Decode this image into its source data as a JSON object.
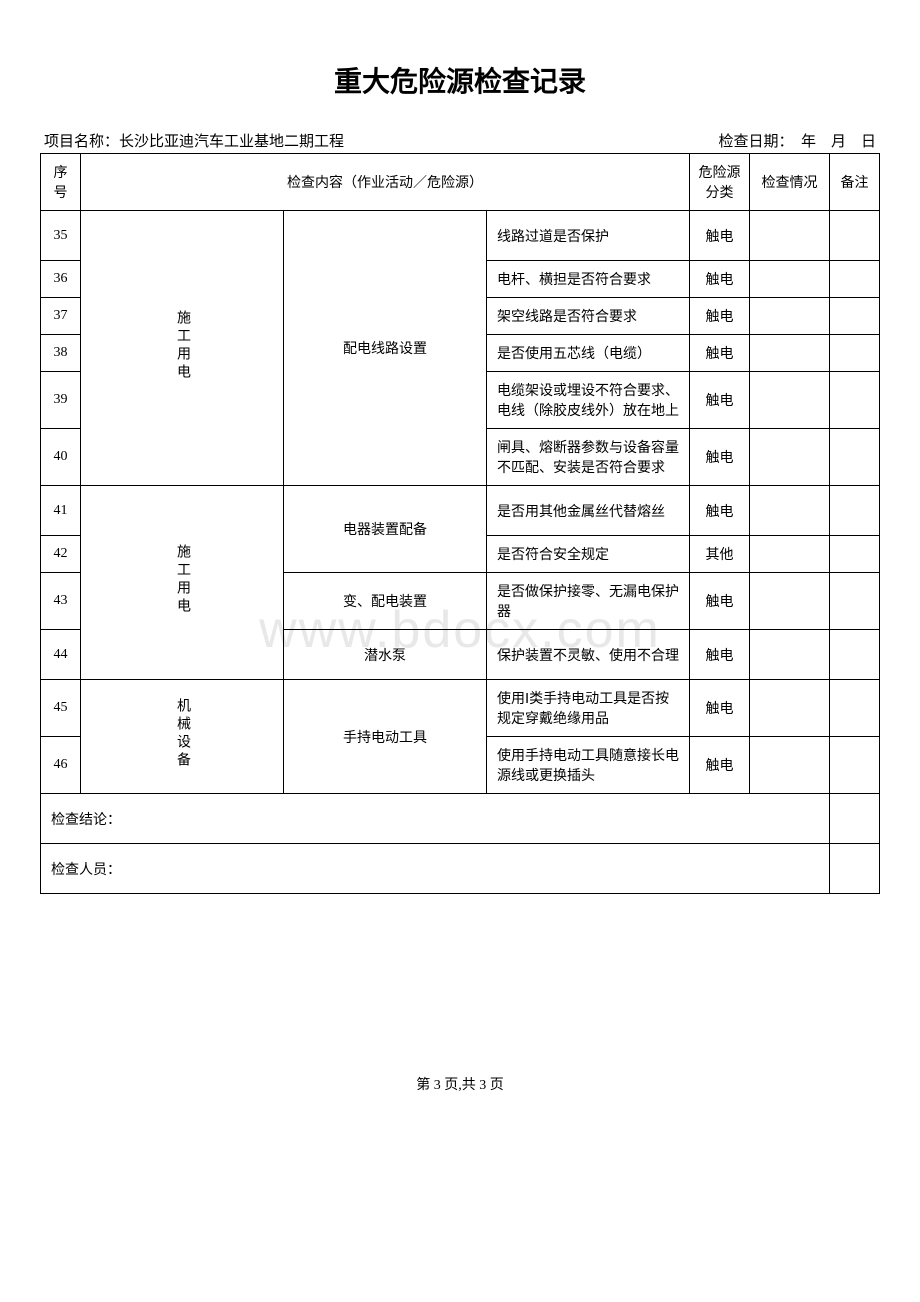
{
  "title": "重大危险源检查记录",
  "projectLabel": "项目名称：",
  "projectName": "长沙比亚迪汽车工业基地二期工程",
  "dateLabel": "检查日期：",
  "dateValue": "年　月　日",
  "watermark": "www.bdocx.com",
  "headers": {
    "seq": "序号",
    "content": "检查内容（作业活动／危险源）",
    "type": "危险源分类",
    "status": "检查情况",
    "remark": "备注"
  },
  "groups": {
    "g1": "施工用电",
    "g1sub1": "配电线路设置",
    "g1sub2": "电器装置配备",
    "g1sub3": "变、配电装置",
    "g1sub4": "潜水泵",
    "g2": "机械设备",
    "g2sub1": "手持电动工具"
  },
  "rows": {
    "r35": {
      "seq": "35",
      "content": "线路过道是否保护",
      "type": "触电"
    },
    "r36": {
      "seq": "36",
      "content": "电杆、横担是否符合要求",
      "type": "触电"
    },
    "r37": {
      "seq": "37",
      "content": "架空线路是否符合要求",
      "type": "触电"
    },
    "r38": {
      "seq": "38",
      "content": "是否使用五芯线（电缆）",
      "type": "触电"
    },
    "r39": {
      "seq": "39",
      "content": "电缆架设或埋设不符合要求、电线（除胶皮线外）放在地上",
      "type": "触电"
    },
    "r40": {
      "seq": "40",
      "content": "闸具、熔断器参数与设备容量不匹配、安装是否符合要求",
      "type": "触电"
    },
    "r41": {
      "seq": "41",
      "content": "是否用其他金属丝代替熔丝",
      "type": "触电"
    },
    "r42": {
      "seq": "42",
      "content": "是否符合安全规定",
      "type": "其他"
    },
    "r43": {
      "seq": "43",
      "content": "是否做保护接零、无漏电保护器",
      "type": "触电"
    },
    "r44": {
      "seq": "44",
      "content": "保护装置不灵敏、使用不合理",
      "type": "触电"
    },
    "r45": {
      "seq": "45",
      "content": "使用Ⅰ类手持电动工具是否按规定穿戴绝缘用品",
      "type": "触电"
    },
    "r46": {
      "seq": "46",
      "content": "使用手持电动工具随意接长电源线或更换插头",
      "type": "触电"
    }
  },
  "conclusion": "检查结论：",
  "inspector": "检查人员：",
  "footer": "第 3 页,共 3 页"
}
